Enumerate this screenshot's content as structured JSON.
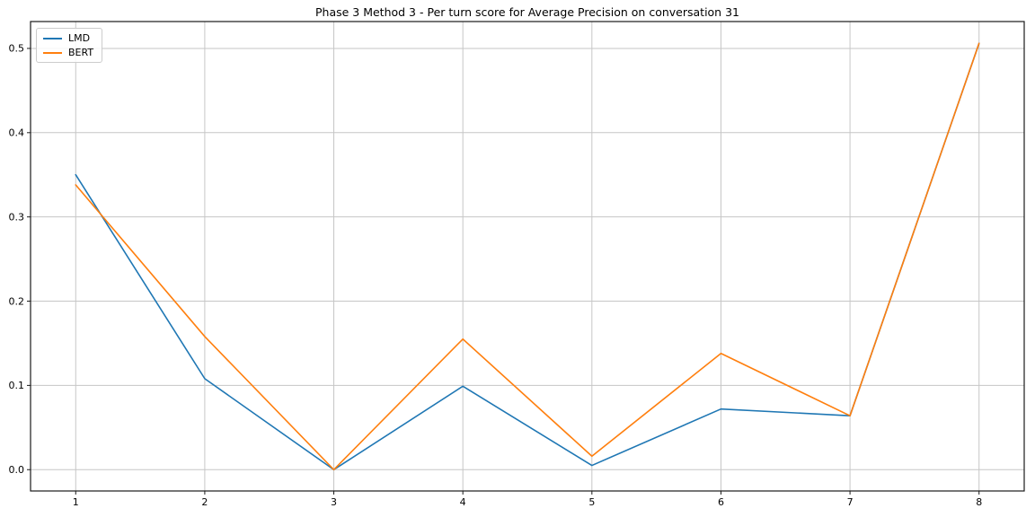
{
  "chart_data": {
    "type": "line",
    "title": "Phase 3 Method 3 - Per turn score for Average Precision on conversation 31",
    "x": [
      1,
      2,
      3,
      4,
      5,
      6,
      7,
      8
    ],
    "series": [
      {
        "name": "LMD",
        "color": "#1f77b4",
        "values": [
          0.35,
          0.108,
          0.0,
          0.099,
          0.005,
          0.072,
          0.064,
          0.506
        ]
      },
      {
        "name": "BERT",
        "color": "#ff7f0e",
        "values": [
          0.338,
          0.158,
          0.0,
          0.155,
          0.016,
          0.138,
          0.064,
          0.506
        ]
      }
    ],
    "xlabel": "",
    "ylabel": "",
    "xlim": [
      0.65,
      8.35
    ],
    "ylim": [
      -0.0253,
      0.5319
    ],
    "xticks": [
      1,
      2,
      3,
      4,
      5,
      6,
      7,
      8
    ],
    "xtick_labels": [
      "1",
      "2",
      "3",
      "4",
      "5",
      "6",
      "7",
      "8"
    ],
    "yticks": [
      0.0,
      0.1,
      0.2,
      0.3,
      0.4,
      0.5
    ],
    "ytick_labels": [
      "0.0",
      "0.1",
      "0.2",
      "0.3",
      "0.4",
      "0.5"
    ],
    "grid": true,
    "legend_position": "upper left",
    "colors": {
      "grid": "#c6c6c6",
      "spine": "#1a1a1a",
      "background": "#ffffff",
      "text": "#000000"
    }
  }
}
